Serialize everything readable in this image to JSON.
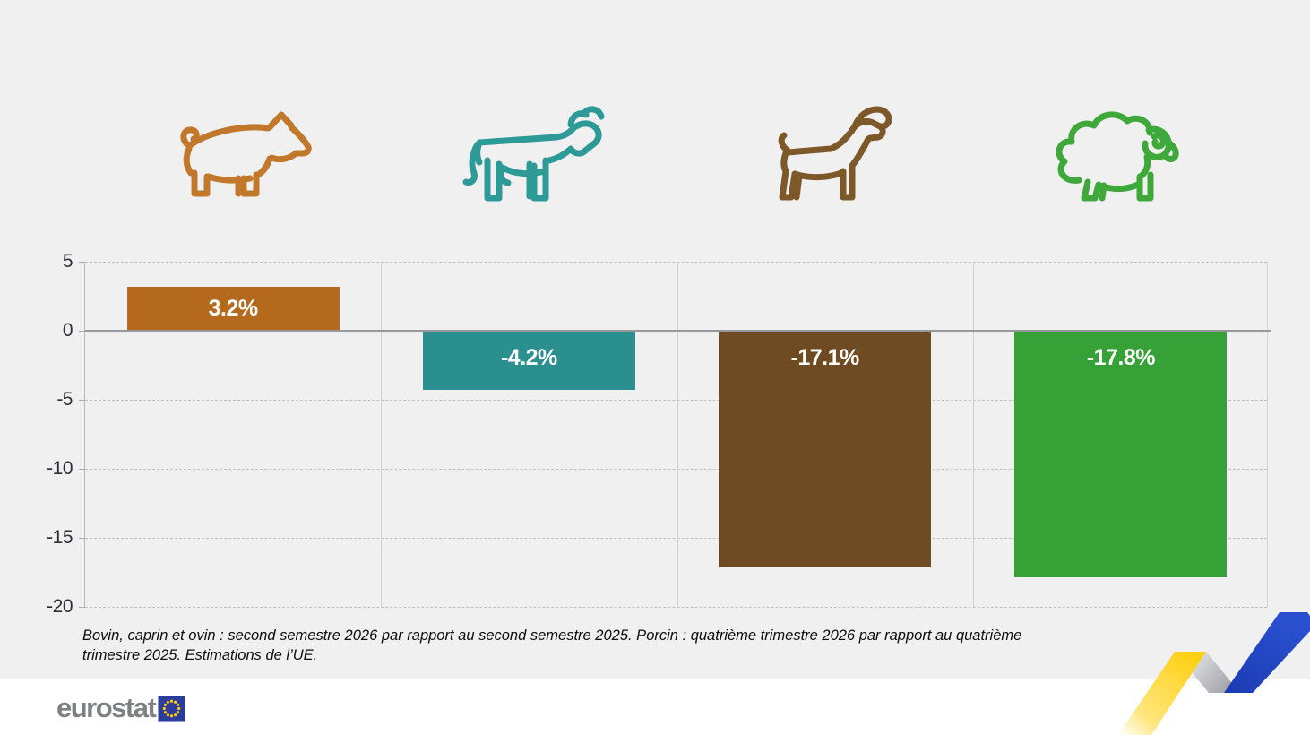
{
  "chart_data": {
    "type": "bar",
    "categories": [
      "porcin",
      "bovin",
      "caprin",
      "ovin"
    ],
    "values": [
      3.2,
      -4.2,
      -17.1,
      -17.8
    ],
    "labels": [
      "3.2%",
      "-4.2%",
      "-17.1%",
      "-17.8%"
    ],
    "bar_colors": [
      "#b5691c",
      "#2a8f8e",
      "#6f4b23",
      "#36a136"
    ],
    "icon_colors": [
      "#c2782a",
      "#2e9a98",
      "#7d5829",
      "#3fa83a"
    ],
    "icons": [
      "pig-icon",
      "cow-icon",
      "goat-icon",
      "sheep-icon"
    ],
    "ylim": [
      -20,
      5
    ],
    "yticks": [
      5,
      0,
      -5,
      -10,
      -15,
      -20
    ],
    "ytick_labels": [
      "5",
      "0",
      "-5",
      "-10",
      "-15",
      "-20"
    ],
    "grid": "horizontal dashed gridlines, solid zero line, vertical category separators",
    "legend": "none",
    "title": "",
    "xlabel": "",
    "ylabel": "",
    "value_label_color": "#ffffff"
  },
  "footnote": {
    "lines": [
      "Bovin, caprin et ovin : second semestre 2026 par rapport au second semestre 2025. Porcin : quatrième trimestre 2026 par rapport au quatrième",
      "trimestre 2025. Estimations de l’UE."
    ]
  },
  "logo": {
    "text": "eurostat"
  },
  "colors": {
    "panel_background": "#f0f0f1",
    "footer_background": "#ffffff",
    "ribbon_yellow": "#ffd200",
    "ribbon_blue": "#2348c8",
    "ribbon_gray": "#a0a2a7",
    "flag_blue": "#2b3c9c",
    "flag_stars": "#ffcc00"
  }
}
